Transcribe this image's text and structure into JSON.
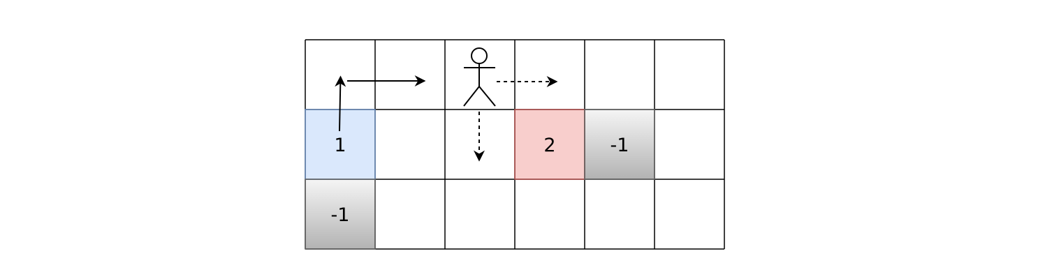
{
  "grid": {
    "rows": 3,
    "cols": 6,
    "cells": [
      {
        "row": 1,
        "col": 0,
        "label": "1",
        "style": "blue"
      },
      {
        "row": 1,
        "col": 3,
        "label": "2",
        "style": "red"
      },
      {
        "row": 1,
        "col": 4,
        "label": "-1",
        "style": "gray"
      },
      {
        "row": 2,
        "col": 0,
        "label": "-1",
        "style": "gray"
      }
    ]
  },
  "agent": {
    "row": 0,
    "col": 2,
    "icon": "stick-figure-icon"
  },
  "colors": {
    "grid_line": "#000000",
    "blue_fill": "#dae8fc",
    "blue_stroke": "#6c8ebf",
    "red_fill": "#f8cecc",
    "red_stroke": "#b85450",
    "gray_top": "#f5f5f5",
    "gray_bottom": "#b3b3b3",
    "gray_stroke": "#666666"
  }
}
